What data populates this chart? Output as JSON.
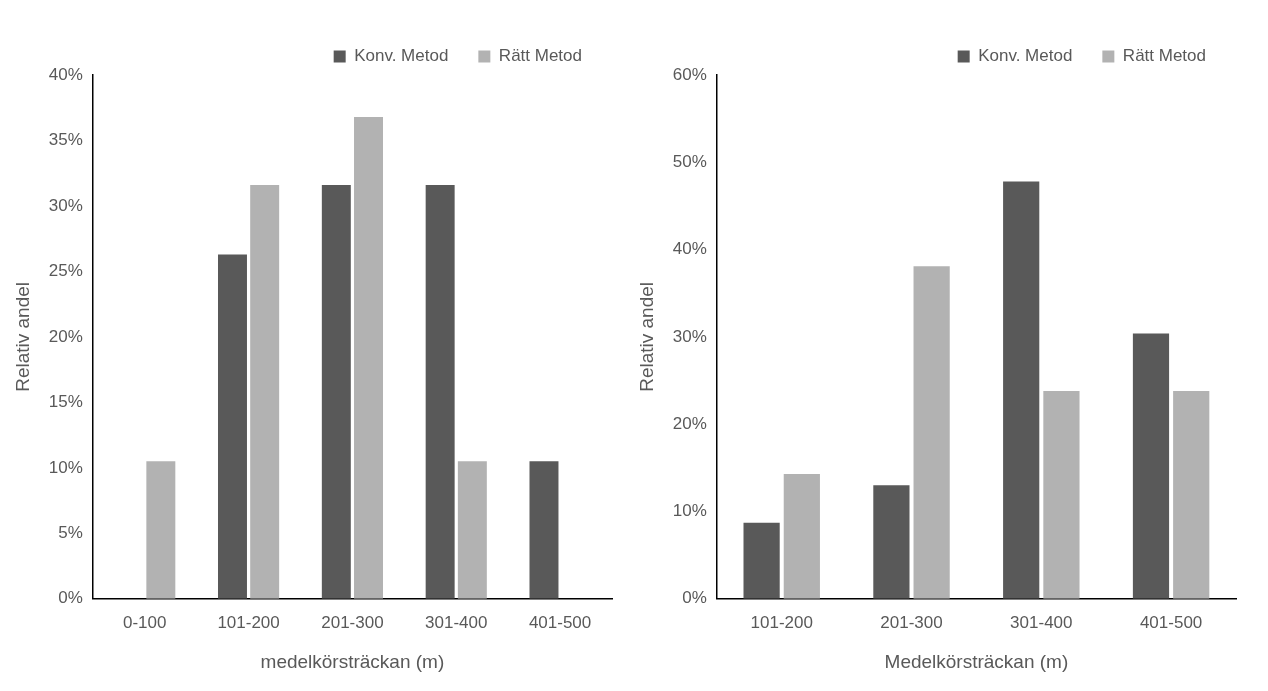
{
  "chart_data": [
    {
      "type": "bar",
      "xlabel": "medelkörsträckan (m)",
      "ylabel": "Relativ andel",
      "categories": [
        "0-100",
        "101-200",
        "201-300",
        "301-400",
        "401-500"
      ],
      "series": [
        {
          "name": "Konv. Metod",
          "color": "#595959",
          "values": [
            0,
            26.3,
            31.6,
            31.6,
            10.5
          ]
        },
        {
          "name": "Rätt Metod",
          "color": "#b2b2b2",
          "values": [
            10.5,
            31.6,
            36.8,
            10.5,
            null
          ]
        }
      ],
      "ylim": [
        0,
        40
      ],
      "yticks": [
        {
          "value": 0,
          "label": "0%"
        },
        {
          "value": 5,
          "label": "5%"
        },
        {
          "value": 10,
          "label": "10%"
        },
        {
          "value": 15,
          "label": "15%"
        },
        {
          "value": 20,
          "label": "20%"
        },
        {
          "value": 25,
          "label": "25%"
        },
        {
          "value": 30,
          "label": "30%"
        },
        {
          "value": 35,
          "label": "35%"
        },
        {
          "value": 40,
          "label": "40%"
        }
      ],
      "grid": false,
      "legend": "top right"
    },
    {
      "type": "bar",
      "xlabel": "Medelkörsträckan (m)",
      "ylabel": "Relativ andel",
      "categories": [
        "101-200",
        "201-300",
        "301-400",
        "401-500"
      ],
      "series": [
        {
          "name": "Konv. Metod",
          "color": "#595959",
          "values": [
            8.7,
            13.0,
            47.8,
            30.4
          ]
        },
        {
          "name": "Rätt Metod",
          "color": "#b2b2b2",
          "values": [
            14.3,
            38.1,
            23.8,
            23.8
          ]
        }
      ],
      "ylim": [
        0,
        60
      ],
      "yticks": [
        {
          "value": 0,
          "label": "0%"
        },
        {
          "value": 10,
          "label": "10%"
        },
        {
          "value": 20,
          "label": "20%"
        },
        {
          "value": 30,
          "label": "30%"
        },
        {
          "value": 40,
          "label": "40%"
        },
        {
          "value": 50,
          "label": "50%"
        },
        {
          "value": 60,
          "label": "60%"
        }
      ],
      "grid": false,
      "legend": "top right"
    }
  ]
}
